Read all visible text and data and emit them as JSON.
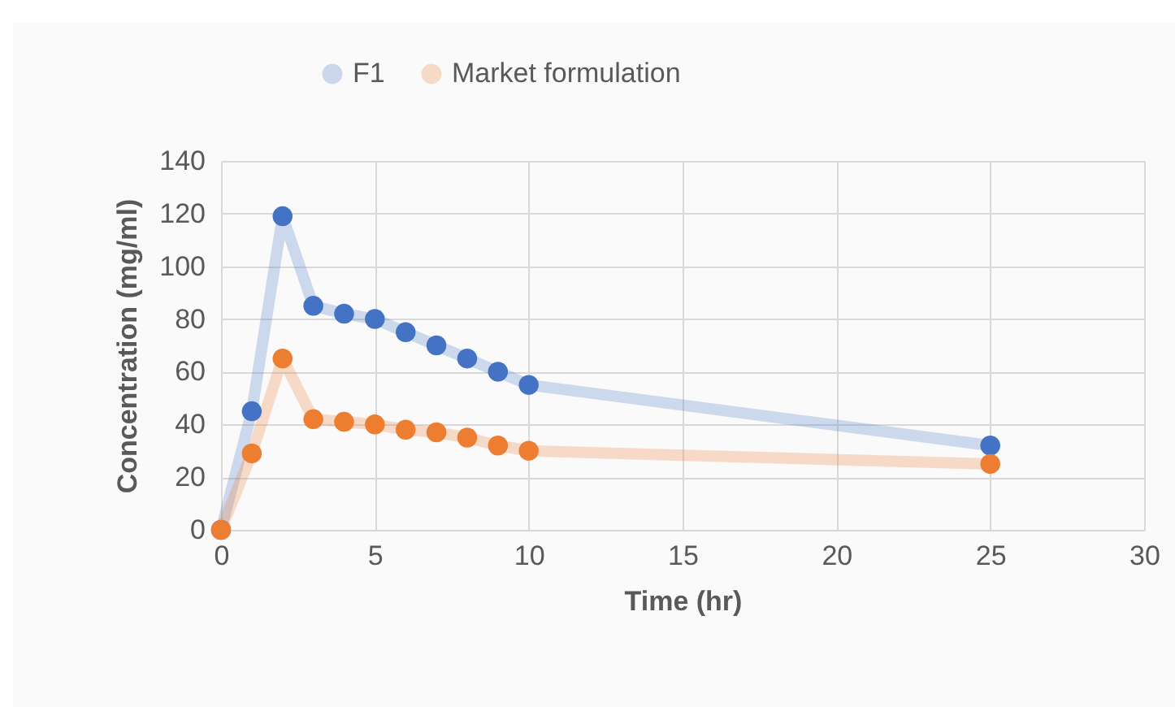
{
  "chart_data": {
    "type": "line",
    "xlabel": "Time (hr)",
    "ylabel": "Concentration (mg/ml)",
    "x": [
      0,
      1,
      2,
      3,
      4,
      5,
      6,
      7,
      8,
      9,
      10,
      25
    ],
    "series": [
      {
        "name": "F1",
        "color": "#4472c4",
        "values": [
          0,
          45,
          119,
          85,
          82,
          80,
          75,
          70,
          65,
          60,
          55,
          32
        ]
      },
      {
        "name": "Market formulation",
        "color": "#ed7d31",
        "values": [
          0,
          29,
          65,
          42,
          41,
          40,
          38,
          37,
          35,
          32,
          30,
          25
        ]
      }
    ],
    "xlim": [
      0,
      30
    ],
    "xticks": [
      0,
      5,
      10,
      15,
      20,
      25,
      30
    ],
    "ylim": [
      0,
      140
    ],
    "yticks": [
      0,
      20,
      40,
      60,
      80,
      100,
      120,
      140
    ],
    "grid": true,
    "legend": "top",
    "marker": "circle",
    "line_style": "solid"
  }
}
